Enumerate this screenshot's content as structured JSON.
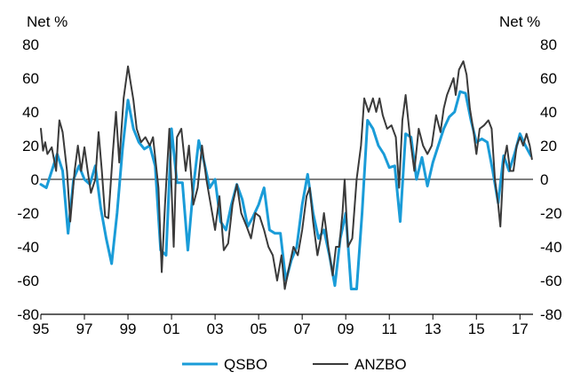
{
  "chart_data": {
    "type": "line",
    "xlabel": "",
    "ylabel": "",
    "left_unit": "Net %",
    "right_unit": "Net %",
    "ylim": [
      -80,
      80
    ],
    "yticks": [
      80,
      60,
      40,
      20,
      0,
      -20,
      -40,
      -60,
      -80
    ],
    "xlim": [
      1995,
      2017.6
    ],
    "xticks": [
      {
        "x": 1995,
        "label": "95"
      },
      {
        "x": 1997,
        "label": "97"
      },
      {
        "x": 1999,
        "label": "99"
      },
      {
        "x": 2001,
        "label": "01"
      },
      {
        "x": 2003,
        "label": "03"
      },
      {
        "x": 2005,
        "label": "05"
      },
      {
        "x": 2007,
        "label": "07"
      },
      {
        "x": 2009,
        "label": "09"
      },
      {
        "x": 2011,
        "label": "11"
      },
      {
        "x": 2013,
        "label": "13"
      },
      {
        "x": 2015,
        "label": "15"
      },
      {
        "x": 2017,
        "label": "17"
      }
    ],
    "grid": false,
    "legend": "bottom",
    "series": [
      {
        "name": "QSBO",
        "color": "#1a9cd8",
        "points": [
          [
            1995.0,
            -3
          ],
          [
            1995.25,
            -5
          ],
          [
            1995.5,
            5
          ],
          [
            1995.75,
            15
          ],
          [
            1996.0,
            5
          ],
          [
            1996.25,
            -32
          ],
          [
            1996.5,
            0
          ],
          [
            1996.75,
            8
          ],
          [
            1997.0,
            0
          ],
          [
            1997.25,
            -3
          ],
          [
            1997.5,
            8
          ],
          [
            1997.75,
            -17
          ],
          [
            1998.0,
            -35
          ],
          [
            1998.25,
            -50
          ],
          [
            1998.5,
            -20
          ],
          [
            1998.75,
            18
          ],
          [
            1999.0,
            47
          ],
          [
            1999.25,
            30
          ],
          [
            1999.5,
            22
          ],
          [
            1999.75,
            18
          ],
          [
            2000.0,
            20
          ],
          [
            2000.25,
            8
          ],
          [
            2000.5,
            -42
          ],
          [
            2000.75,
            -45
          ],
          [
            2001.0,
            30
          ],
          [
            2001.25,
            -2
          ],
          [
            2001.5,
            -2
          ],
          [
            2001.75,
            -42
          ],
          [
            2002.0,
            -5
          ],
          [
            2002.25,
            23
          ],
          [
            2002.5,
            10
          ],
          [
            2002.75,
            -5
          ],
          [
            2003.0,
            0
          ],
          [
            2003.25,
            -25
          ],
          [
            2003.5,
            -30
          ],
          [
            2003.75,
            -15
          ],
          [
            2004.0,
            -3
          ],
          [
            2004.25,
            -12
          ],
          [
            2004.5,
            -28
          ],
          [
            2004.75,
            -22
          ],
          [
            2005.0,
            -15
          ],
          [
            2005.25,
            -5
          ],
          [
            2005.5,
            -30
          ],
          [
            2005.75,
            -32
          ],
          [
            2006.0,
            -32
          ],
          [
            2006.25,
            -60
          ],
          [
            2006.5,
            -48
          ],
          [
            2006.75,
            -40
          ],
          [
            2007.0,
            -15
          ],
          [
            2007.25,
            3
          ],
          [
            2007.5,
            -20
          ],
          [
            2007.75,
            -35
          ],
          [
            2008.0,
            -30
          ],
          [
            2008.25,
            -45
          ],
          [
            2008.5,
            -63
          ],
          [
            2008.75,
            -35
          ],
          [
            2009.0,
            -20
          ],
          [
            2009.25,
            -65
          ],
          [
            2009.5,
            -65
          ],
          [
            2009.75,
            -20
          ],
          [
            2010.0,
            35
          ],
          [
            2010.25,
            30
          ],
          [
            2010.5,
            20
          ],
          [
            2010.75,
            15
          ],
          [
            2011.0,
            7
          ],
          [
            2011.25,
            8
          ],
          [
            2011.5,
            -25
          ],
          [
            2011.75,
            27
          ],
          [
            2012.0,
            25
          ],
          [
            2012.25,
            0
          ],
          [
            2012.5,
            13
          ],
          [
            2012.75,
            -4
          ],
          [
            2013.0,
            10
          ],
          [
            2013.25,
            20
          ],
          [
            2013.5,
            30
          ],
          [
            2013.75,
            37
          ],
          [
            2014.0,
            40
          ],
          [
            2014.25,
            52
          ],
          [
            2014.5,
            51
          ],
          [
            2014.75,
            35
          ],
          [
            2015.0,
            22
          ],
          [
            2015.25,
            24
          ],
          [
            2015.5,
            22
          ],
          [
            2015.75,
            5
          ],
          [
            2016.0,
            -14
          ],
          [
            2016.25,
            14
          ],
          [
            2016.5,
            5
          ],
          [
            2016.75,
            15
          ],
          [
            2017.0,
            27
          ],
          [
            2017.25,
            20
          ],
          [
            2017.5,
            14
          ]
        ]
      },
      {
        "name": "ANZBO",
        "color": "#3a3a3a",
        "points": [
          [
            1995.0,
            30
          ],
          [
            1995.1,
            17
          ],
          [
            1995.2,
            22
          ],
          [
            1995.3,
            15
          ],
          [
            1995.5,
            19
          ],
          [
            1995.7,
            5
          ],
          [
            1995.85,
            35
          ],
          [
            1996.0,
            28
          ],
          [
            1996.2,
            5
          ],
          [
            1996.35,
            -25
          ],
          [
            1996.55,
            5
          ],
          [
            1996.7,
            20
          ],
          [
            1996.85,
            5
          ],
          [
            1997.0,
            19
          ],
          [
            1997.15,
            5
          ],
          [
            1997.3,
            -8
          ],
          [
            1997.5,
            0
          ],
          [
            1997.65,
            28
          ],
          [
            1997.8,
            5
          ],
          [
            1997.95,
            -22
          ],
          [
            1998.1,
            -23
          ],
          [
            1998.3,
            15
          ],
          [
            1998.45,
            40
          ],
          [
            1998.6,
            10
          ],
          [
            1998.8,
            48
          ],
          [
            1999.0,
            67
          ],
          [
            1999.25,
            47
          ],
          [
            1999.4,
            30
          ],
          [
            1999.6,
            22
          ],
          [
            1999.8,
            25
          ],
          [
            2000.0,
            20
          ],
          [
            2000.15,
            25
          ],
          [
            2000.4,
            -5
          ],
          [
            2000.55,
            -55
          ],
          [
            2000.7,
            -15
          ],
          [
            2000.9,
            30
          ],
          [
            2001.1,
            -40
          ],
          [
            2001.25,
            25
          ],
          [
            2001.45,
            30
          ],
          [
            2001.65,
            5
          ],
          [
            2001.8,
            20
          ],
          [
            2002.0,
            -15
          ],
          [
            2002.2,
            -5
          ],
          [
            2002.4,
            20
          ],
          [
            2002.6,
            0
          ],
          [
            2002.8,
            -15
          ],
          [
            2003.0,
            -30
          ],
          [
            2003.2,
            -10
          ],
          [
            2003.4,
            -42
          ],
          [
            2003.6,
            -38
          ],
          [
            2003.8,
            -15
          ],
          [
            2004.0,
            -3
          ],
          [
            2004.2,
            -20
          ],
          [
            2004.45,
            -28
          ],
          [
            2004.65,
            -35
          ],
          [
            2004.85,
            -20
          ],
          [
            2005.05,
            -22
          ],
          [
            2005.25,
            -30
          ],
          [
            2005.45,
            -40
          ],
          [
            2005.65,
            -45
          ],
          [
            2005.85,
            -60
          ],
          [
            2006.05,
            -45
          ],
          [
            2006.2,
            -65
          ],
          [
            2006.4,
            -52
          ],
          [
            2006.6,
            -40
          ],
          [
            2006.8,
            -45
          ],
          [
            2007.0,
            -30
          ],
          [
            2007.2,
            -10
          ],
          [
            2007.35,
            -5
          ],
          [
            2007.5,
            -25
          ],
          [
            2007.7,
            -45
          ],
          [
            2007.85,
            -35
          ],
          [
            2008.0,
            -20
          ],
          [
            2008.2,
            -40
          ],
          [
            2008.4,
            -57
          ],
          [
            2008.55,
            -40
          ],
          [
            2008.7,
            -40
          ],
          [
            2008.85,
            -20
          ],
          [
            2008.95,
            0
          ],
          [
            2009.1,
            -40
          ],
          [
            2009.3,
            -35
          ],
          [
            2009.5,
            0
          ],
          [
            2009.7,
            20
          ],
          [
            2009.85,
            48
          ],
          [
            2010.05,
            40
          ],
          [
            2010.25,
            48
          ],
          [
            2010.4,
            40
          ],
          [
            2010.55,
            48
          ],
          [
            2010.7,
            38
          ],
          [
            2010.9,
            30
          ],
          [
            2011.1,
            32
          ],
          [
            2011.3,
            25
          ],
          [
            2011.45,
            -5
          ],
          [
            2011.6,
            35
          ],
          [
            2011.75,
            50
          ],
          [
            2011.95,
            25
          ],
          [
            2012.15,
            5
          ],
          [
            2012.35,
            30
          ],
          [
            2012.55,
            20
          ],
          [
            2012.75,
            15
          ],
          [
            2012.95,
            20
          ],
          [
            2013.15,
            38
          ],
          [
            2013.35,
            28
          ],
          [
            2013.5,
            42
          ],
          [
            2013.65,
            50
          ],
          [
            2013.8,
            55
          ],
          [
            2013.95,
            60
          ],
          [
            2014.05,
            50
          ],
          [
            2014.2,
            65
          ],
          [
            2014.4,
            70
          ],
          [
            2014.55,
            62
          ],
          [
            2014.7,
            42
          ],
          [
            2014.85,
            30
          ],
          [
            2015.0,
            15
          ],
          [
            2015.15,
            30
          ],
          [
            2015.35,
            32
          ],
          [
            2015.55,
            35
          ],
          [
            2015.7,
            30
          ],
          [
            2015.85,
            0
          ],
          [
            2016.0,
            -15
          ],
          [
            2016.1,
            -28
          ],
          [
            2016.25,
            10
          ],
          [
            2016.4,
            20
          ],
          [
            2016.55,
            5
          ],
          [
            2016.7,
            5
          ],
          [
            2016.85,
            20
          ],
          [
            2017.0,
            25
          ],
          [
            2017.15,
            20
          ],
          [
            2017.3,
            27
          ],
          [
            2017.45,
            20
          ],
          [
            2017.55,
            12
          ]
        ]
      }
    ]
  }
}
